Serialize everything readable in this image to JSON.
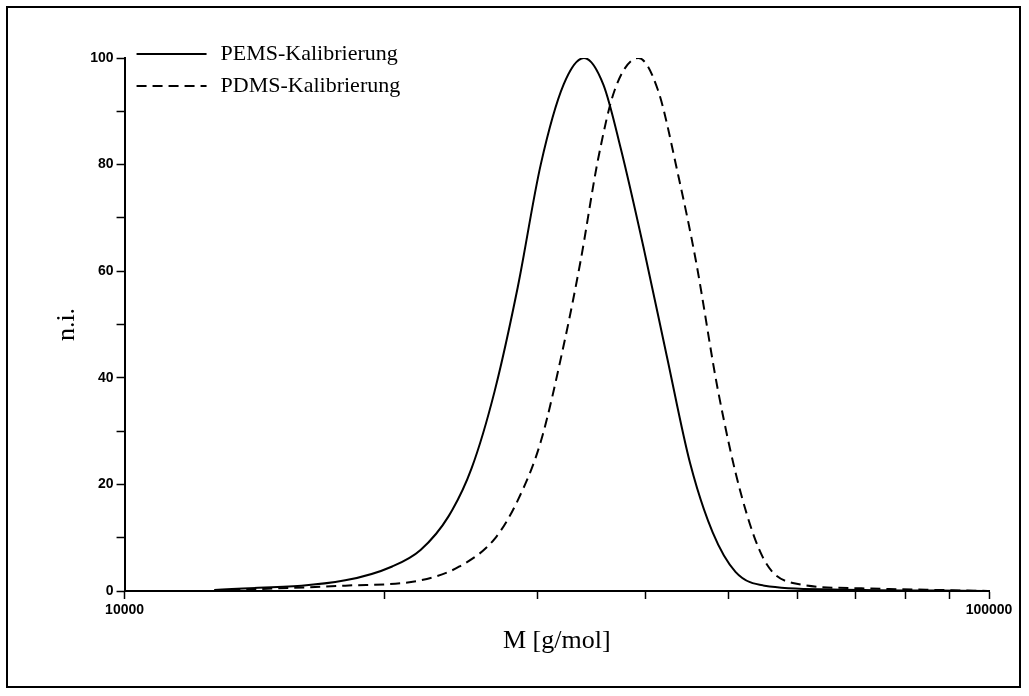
{
  "chart_data": {
    "type": "line",
    "xlabel": "M [g/mol]",
    "ylabel": "n.i.",
    "log": "x",
    "xlim": [
      10000,
      100000
    ],
    "xticks": [
      10000,
      {
        "value": 20000,
        "label": null
      },
      {
        "value": 30000,
        "label": null
      },
      {
        "value": 40000,
        "label": null
      },
      {
        "value": 50000,
        "label": null
      },
      {
        "value": 60000,
        "label": null
      },
      {
        "value": 70000,
        "label": null
      },
      {
        "value": 80000,
        "label": null
      },
      {
        "value": 90000,
        "label": null
      },
      100000
    ],
    "ylim": [
      0,
      100
    ],
    "yticks": [
      0,
      {
        "value": 10,
        "label": null
      },
      20,
      {
        "value": 30,
        "label": null
      },
      40,
      {
        "value": 50,
        "label": null
      },
      60,
      {
        "value": 70,
        "label": null
      },
      80,
      {
        "value": 90,
        "label": null
      },
      100
    ],
    "grid": false,
    "legend": "top left",
    "marker": "none",
    "series": [
      {
        "name": "PEMS-Kalibrierung",
        "color": "#000000",
        "line_style": "solid",
        "x": [
          12700,
          18000,
          20400,
          22000,
          23700,
          25200,
          26800,
          28500,
          30300,
          32200,
          34000,
          35800,
          37500,
          39900,
          42400,
          45100,
          47900,
          50900,
          55000,
          66000,
          100000
        ],
        "values": [
          0.2,
          2,
          4.6,
          7.7,
          14,
          23,
          37.5,
          57,
          80,
          95,
          100,
          95,
          83,
          64,
          44,
          24,
          11,
          3.6,
          1,
          0.3,
          0
        ]
      },
      {
        "name": "PDMS-Kalibrierung",
        "color": "#000000",
        "line_style": "dashed",
        "x": [
          12700,
          18000,
          22000,
          24400,
          26800,
          28500,
          30300,
          32200,
          33700,
          35300,
          36900,
          39300,
          41400,
          43700,
          45800,
          48600,
          51700,
          55000,
          59300,
          71200,
          100000
        ],
        "values": [
          0.1,
          1,
          2,
          4.6,
          9.8,
          17,
          28,
          46,
          62,
          81,
          94,
          100,
          94,
          78,
          62,
          37.5,
          18,
          5.7,
          1.5,
          0.5,
          0
        ]
      }
    ]
  }
}
